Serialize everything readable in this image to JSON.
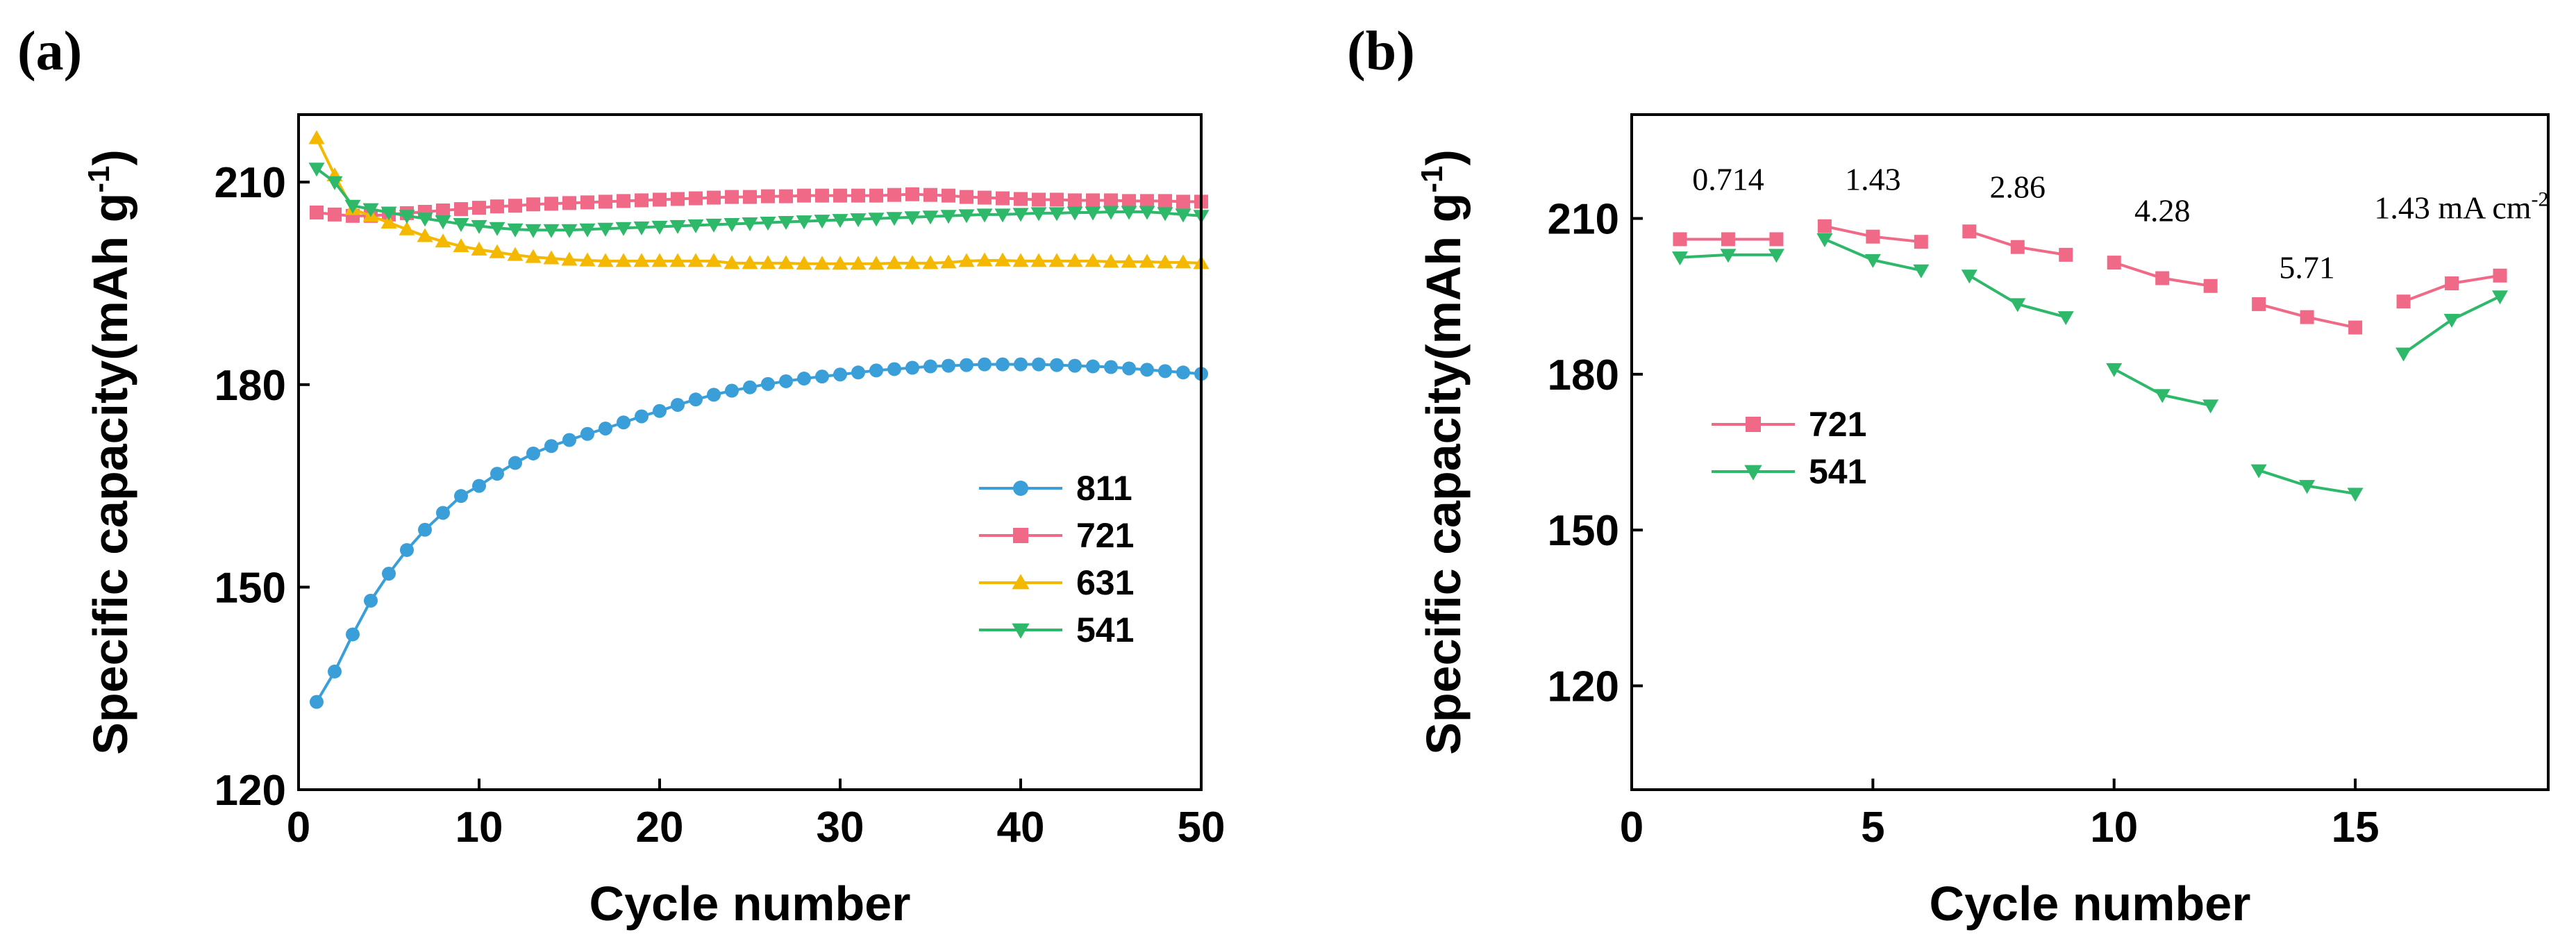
{
  "chart_data": [
    {
      "id": "a",
      "panel_label": "(a)",
      "type": "line",
      "xlabel": "Cycle number",
      "ylabel_main": "Specific capacity(mAh g",
      "ylabel_sup": "-1",
      "ylabel_end": ")",
      "xlim": [
        0,
        50
      ],
      "ylim": [
        120,
        220
      ],
      "xticks": [
        0,
        10,
        20,
        30,
        40,
        50
      ],
      "yticks": [
        120,
        150,
        180,
        210
      ],
      "legend_position": "center-right",
      "series": [
        {
          "name": "811",
          "color": "#3a9fd8",
          "marker": "circle",
          "x": [
            1,
            2,
            3,
            4,
            5,
            6,
            7,
            8,
            9,
            10,
            11,
            12,
            13,
            14,
            15,
            16,
            17,
            18,
            19,
            20,
            21,
            22,
            23,
            24,
            25,
            26,
            27,
            28,
            29,
            30,
            31,
            32,
            33,
            34,
            35,
            36,
            37,
            38,
            39,
            40,
            41,
            42,
            43,
            44,
            45,
            46,
            47,
            48,
            49,
            50
          ],
          "values": [
            133.0,
            137.5,
            143.0,
            148.0,
            152.0,
            155.5,
            158.5,
            161.0,
            163.5,
            165.0,
            166.8,
            168.4,
            169.8,
            170.9,
            171.8,
            172.7,
            173.5,
            174.4,
            175.3,
            176.1,
            177.0,
            177.8,
            178.5,
            179.1,
            179.6,
            180.1,
            180.5,
            180.9,
            181.2,
            181.5,
            181.8,
            182.1,
            182.3,
            182.5,
            182.7,
            182.8,
            182.9,
            183.0,
            183.0,
            183.0,
            183.0,
            182.9,
            182.8,
            182.7,
            182.6,
            182.4,
            182.2,
            182.0,
            181.8,
            181.6
          ]
        },
        {
          "name": "721",
          "color": "#f06a87",
          "marker": "square",
          "x": [
            1,
            2,
            3,
            4,
            5,
            6,
            7,
            8,
            9,
            10,
            11,
            12,
            13,
            14,
            15,
            16,
            17,
            18,
            19,
            20,
            21,
            22,
            23,
            24,
            25,
            26,
            27,
            28,
            29,
            30,
            31,
            32,
            33,
            34,
            35,
            36,
            37,
            38,
            39,
            40,
            41,
            42,
            43,
            44,
            45,
            46,
            47,
            48,
            49,
            50
          ],
          "values": [
            205.5,
            205.2,
            205.0,
            205.0,
            205.2,
            205.4,
            205.6,
            205.8,
            206.0,
            206.2,
            206.4,
            206.5,
            206.7,
            206.8,
            206.9,
            207.0,
            207.1,
            207.2,
            207.3,
            207.4,
            207.5,
            207.6,
            207.7,
            207.8,
            207.8,
            207.9,
            207.9,
            208.0,
            208.0,
            208.0,
            208.0,
            208.0,
            208.1,
            208.2,
            208.1,
            208.0,
            207.8,
            207.7,
            207.6,
            207.5,
            207.4,
            207.4,
            207.3,
            207.3,
            207.3,
            207.2,
            207.2,
            207.2,
            207.1,
            207.1
          ]
        },
        {
          "name": "631",
          "color": "#f5b800",
          "marker": "triangle-up",
          "x": [
            1,
            2,
            3,
            4,
            5,
            6,
            7,
            8,
            9,
            10,
            11,
            12,
            13,
            14,
            15,
            16,
            17,
            18,
            19,
            20,
            21,
            22,
            23,
            24,
            25,
            26,
            27,
            28,
            29,
            30,
            31,
            32,
            33,
            34,
            35,
            36,
            37,
            38,
            39,
            40,
            41,
            42,
            43,
            44,
            45,
            46,
            47,
            48,
            49,
            50
          ],
          "values": [
            216.5,
            211.0,
            206.0,
            205.0,
            204.0,
            203.0,
            202.0,
            201.2,
            200.5,
            200.0,
            199.6,
            199.2,
            198.9,
            198.7,
            198.5,
            198.4,
            198.3,
            198.3,
            198.3,
            198.3,
            198.3,
            198.3,
            198.3,
            198.0,
            198.0,
            198.0,
            198.0,
            197.9,
            197.9,
            197.9,
            197.9,
            197.9,
            198.0,
            198.0,
            198.0,
            198.1,
            198.3,
            198.4,
            198.4,
            198.3,
            198.3,
            198.3,
            198.3,
            198.3,
            198.2,
            198.2,
            198.2,
            198.1,
            198.1,
            198.0
          ]
        },
        {
          "name": "541",
          "color": "#2db86a",
          "marker": "triangle-down",
          "x": [
            1,
            2,
            3,
            4,
            5,
            6,
            7,
            8,
            9,
            10,
            11,
            12,
            13,
            14,
            15,
            16,
            17,
            18,
            19,
            20,
            21,
            22,
            23,
            24,
            25,
            26,
            27,
            28,
            29,
            30,
            31,
            32,
            33,
            34,
            35,
            36,
            37,
            38,
            39,
            40,
            41,
            42,
            43,
            44,
            45,
            46,
            47,
            48,
            49,
            50
          ],
          "values": [
            212.0,
            210.0,
            206.5,
            206.0,
            205.5,
            205.0,
            204.6,
            204.2,
            203.8,
            203.5,
            203.2,
            203.0,
            202.9,
            202.9,
            202.9,
            203.0,
            203.1,
            203.2,
            203.3,
            203.4,
            203.5,
            203.6,
            203.7,
            203.8,
            203.9,
            204.0,
            204.1,
            204.2,
            204.3,
            204.4,
            204.5,
            204.6,
            204.7,
            204.8,
            204.9,
            205.0,
            205.1,
            205.2,
            205.2,
            205.3,
            205.4,
            205.4,
            205.5,
            205.5,
            205.6,
            205.6,
            205.6,
            205.4,
            205.2,
            205.0
          ]
        }
      ]
    },
    {
      "id": "b",
      "panel_label": "(b)",
      "type": "line",
      "xlabel": "Cycle number",
      "ylabel_main": "Specific capacity(mAh g",
      "ylabel_sup": "-1",
      "ylabel_end": ")",
      "xlim": [
        0,
        19
      ],
      "ylim": [
        100,
        230
      ],
      "xticks": [
        0,
        5,
        10,
        15
      ],
      "yticks": [
        120,
        150,
        180,
        210
      ],
      "legend_position": "center-left",
      "annotations": [
        {
          "text": "0.714",
          "x": 2.0,
          "y": 215.5
        },
        {
          "text": "1.43",
          "x": 5.0,
          "y": 215.5
        },
        {
          "text": "2.86",
          "x": 8.0,
          "y": 214.0
        },
        {
          "text": "4.28",
          "x": 11.0,
          "y": 209.5
        },
        {
          "text": "5.71",
          "x": 14.0,
          "y": 198.5
        },
        {
          "text": "1.43 mA cm",
          "sup": "-2",
          "x": 17.2,
          "y": 210.0
        }
      ],
      "series": [
        {
          "name": "721",
          "color": "#f06a87",
          "marker": "square",
          "segments": [
            {
              "x": [
                1,
                2,
                3
              ],
              "values": [
                206.0,
                206.0,
                206.0
              ]
            },
            {
              "x": [
                4,
                5,
                6
              ],
              "values": [
                208.5,
                206.5,
                205.5
              ]
            },
            {
              "x": [
                7,
                8,
                9
              ],
              "values": [
                207.5,
                204.5,
                203.0
              ]
            },
            {
              "x": [
                10,
                11,
                12
              ],
              "values": [
                201.5,
                198.5,
                197.0
              ]
            },
            {
              "x": [
                13,
                14,
                15
              ],
              "values": [
                193.5,
                191.0,
                189.0
              ]
            },
            {
              "x": [
                16,
                17,
                18
              ],
              "values": [
                194.0,
                197.5,
                199.0
              ]
            }
          ]
        },
        {
          "name": "541",
          "color": "#2db86a",
          "marker": "triangle-down",
          "segments": [
            {
              "x": [
                1,
                2,
                3
              ],
              "values": [
                202.5,
                203.0,
                203.0
              ]
            },
            {
              "x": [
                4,
                5,
                6
              ],
              "values": [
                206.0,
                202.0,
                200.0
              ]
            },
            {
              "x": [
                7,
                8,
                9
              ],
              "values": [
                199.0,
                193.5,
                191.0
              ]
            },
            {
              "x": [
                10,
                11,
                12
              ],
              "values": [
                181.0,
                176.0,
                174.0
              ]
            },
            {
              "x": [
                13,
                14,
                15
              ],
              "values": [
                161.5,
                158.5,
                157.0
              ]
            },
            {
              "x": [
                16,
                17,
                18
              ],
              "values": [
                184.0,
                190.5,
                195.0
              ]
            }
          ]
        }
      ]
    }
  ]
}
